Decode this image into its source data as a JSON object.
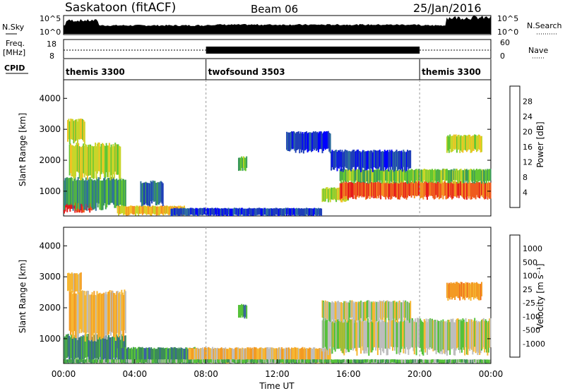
{
  "header": {
    "station": "Saskatoon (fitACF)",
    "beam": "Beam 06",
    "date": "25/Jan/2016"
  },
  "top_panels": {
    "nsky_label": "N.Sky",
    "nsky_ticks": [
      "10^5",
      "10^0"
    ],
    "nsearch_label": "N.Search",
    "nsearch_ticks": [
      "10^5",
      "10^0"
    ],
    "freq_label_1": "Freq.",
    "freq_label_2": "[MHz]",
    "freq_ticks": [
      "18",
      "8"
    ],
    "nave_label": "Nave",
    "nave_ticks": [
      "60",
      "0"
    ],
    "cpid_label": "CPID",
    "cpid_segments": [
      {
        "label": "themis 3300",
        "start_hour": 0,
        "end_hour": 8
      },
      {
        "label": "twofsound 3503",
        "start_hour": 8,
        "end_hour": 20
      },
      {
        "label": "themis 3300",
        "start_hour": 20,
        "end_hour": 24
      }
    ]
  },
  "chart_data": [
    {
      "type": "heatmap",
      "panel": "power",
      "ylabel": "Slant Range [km]",
      "yticks": [
        "1000",
        "2000",
        "3000",
        "4000"
      ],
      "ylim": [
        200,
        4600
      ],
      "xlim": [
        0,
        24
      ],
      "colorbar": {
        "label": "Power [dB]",
        "ticks": [
          "4",
          "8",
          "12",
          "16",
          "20",
          "24",
          "28"
        ],
        "colors": [
          "#0000ff",
          "#1f3fb8",
          "#2f6f9f",
          "#3c9a5a",
          "#63c633",
          "#c9d52a",
          "#f6c025",
          "#f39123",
          "#ef5a1f",
          "#e41b1b"
        ]
      },
      "regions": [
        {
          "t0": 0.0,
          "t1": 1.6,
          "r0": 380,
          "r1": 1050,
          "level": 9
        },
        {
          "t0": 0.0,
          "t1": 3.5,
          "r0": 500,
          "r1": 1400,
          "level": 3
        },
        {
          "t0": 0.3,
          "t1": 3.2,
          "r0": 1500,
          "r1": 2500,
          "level": 5
        },
        {
          "t0": 0.2,
          "t1": 1.2,
          "r0": 2600,
          "r1": 3300,
          "level": 5
        },
        {
          "t0": 3.0,
          "t1": 6.8,
          "r0": 250,
          "r1": 520,
          "level": 6
        },
        {
          "t0": 4.3,
          "t1": 5.6,
          "r0": 600,
          "r1": 1300,
          "level": 2
        },
        {
          "t0": 6.0,
          "t1": 14.5,
          "r0": 220,
          "r1": 450,
          "level": 1
        },
        {
          "t0": 14.5,
          "t1": 16.0,
          "r0": 700,
          "r1": 1100,
          "level": 5
        },
        {
          "t0": 15.5,
          "t1": 24.0,
          "r0": 800,
          "r1": 1300,
          "level": 8
        },
        {
          "t0": 15.5,
          "t1": 24.0,
          "r0": 1300,
          "r1": 1700,
          "level": 4
        },
        {
          "t0": 15.0,
          "t1": 19.5,
          "r0": 1700,
          "r1": 2300,
          "level": 1
        },
        {
          "t0": 21.5,
          "t1": 23.5,
          "r0": 2300,
          "r1": 2800,
          "level": 5
        },
        {
          "t0": 9.8,
          "t1": 10.3,
          "r0": 1700,
          "r1": 2100,
          "level": 4
        },
        {
          "t0": 12.5,
          "t1": 15.0,
          "r0": 2300,
          "r1": 2900,
          "level": 1
        }
      ]
    },
    {
      "type": "heatmap",
      "panel": "velocity",
      "ylabel": "Slant Range [km]",
      "xlabel": "Time UT",
      "yticks": [
        "1000",
        "2000",
        "3000",
        "4000"
      ],
      "ylim": [
        200,
        4600
      ],
      "xlim": [
        0,
        24
      ],
      "xticks": [
        "00:00",
        "04:00",
        "08:00",
        "12:00",
        "16:00",
        "20:00",
        "00:00"
      ],
      "colorbar": {
        "label": "Velocity [m s⁻¹]",
        "ticks": [
          "1000",
          "500",
          "100",
          "25",
          "-25",
          "-100",
          "-500",
          "-1000"
        ],
        "colors": [
          "#1f34b8",
          "#3a5fa5",
          "#3c8c5a",
          "#56c13a",
          "#bdbdbd",
          "#f6b733",
          "#f39a23",
          "#ef6d1f",
          "#e41b1b"
        ]
      },
      "regions": [
        {
          "t0": 0.0,
          "t1": 3.5,
          "r0": 300,
          "r1": 1100,
          "level": 2
        },
        {
          "t0": 0.3,
          "t1": 3.5,
          "r0": 1100,
          "r1": 2500,
          "level": 5
        },
        {
          "t0": 0.2,
          "t1": 1.0,
          "r0": 2500,
          "r1": 3100,
          "level": 5
        },
        {
          "t0": 3.0,
          "t1": 7.5,
          "r0": 250,
          "r1": 700,
          "level": 2
        },
        {
          "t0": 7.0,
          "t1": 15.0,
          "r0": 250,
          "r1": 700,
          "level": 5
        },
        {
          "t0": 14.5,
          "t1": 24.0,
          "r0": 600,
          "r1": 1600,
          "level": 4
        },
        {
          "t0": 14.5,
          "t1": 19.5,
          "r0": 1600,
          "r1": 2200,
          "level": 4
        },
        {
          "t0": 21.5,
          "t1": 23.5,
          "r0": 2300,
          "r1": 2800,
          "level": 6
        },
        {
          "t0": 9.8,
          "t1": 10.3,
          "r0": 1700,
          "r1": 2100,
          "level": 2
        },
        {
          "t0": 0.0,
          "t1": 24.0,
          "r0": 220,
          "r1": 330,
          "level": 3
        }
      ]
    }
  ]
}
